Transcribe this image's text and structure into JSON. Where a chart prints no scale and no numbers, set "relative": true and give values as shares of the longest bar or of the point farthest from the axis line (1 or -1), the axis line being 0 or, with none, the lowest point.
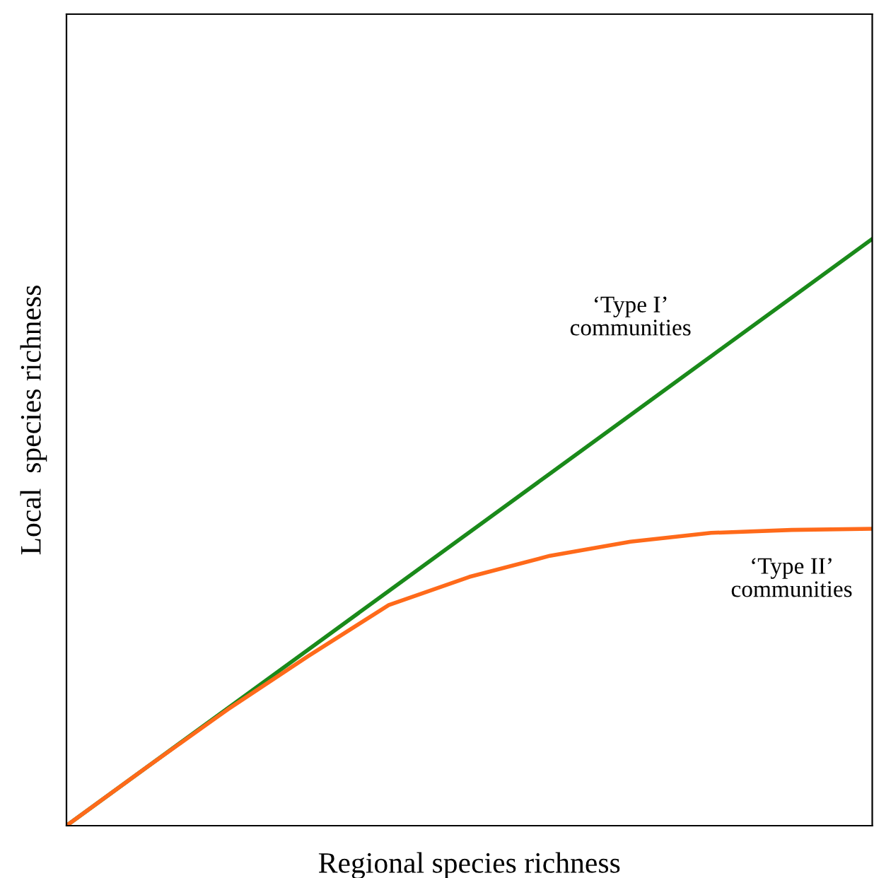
{
  "chart_data": {
    "type": "line",
    "relative": true,
    "xlabel": "Regional species richness",
    "ylabel": "Local  species richness",
    "categories": [
      null,
      null,
      null,
      null,
      null,
      null,
      null,
      null,
      null,
      null,
      null
    ],
    "series": [
      {
        "name": "‘Type I’\ncommunities",
        "color": "#1a8a1a",
        "values": [
          0,
          0.1,
          0.2,
          0.3,
          0.4,
          0.5,
          0.6,
          0.7,
          0.8,
          0.9,
          1
        ]
      },
      {
        "name": "‘Type II’\ncommunities",
        "color": "#ff6a1a",
        "values": [
          0,
          0.1,
          0.198,
          0.289,
          0.376,
          0.424,
          0.46,
          0.484,
          0.499,
          0.504,
          0.506
        ]
      }
    ],
    "grid": false,
    "legend": false
  }
}
